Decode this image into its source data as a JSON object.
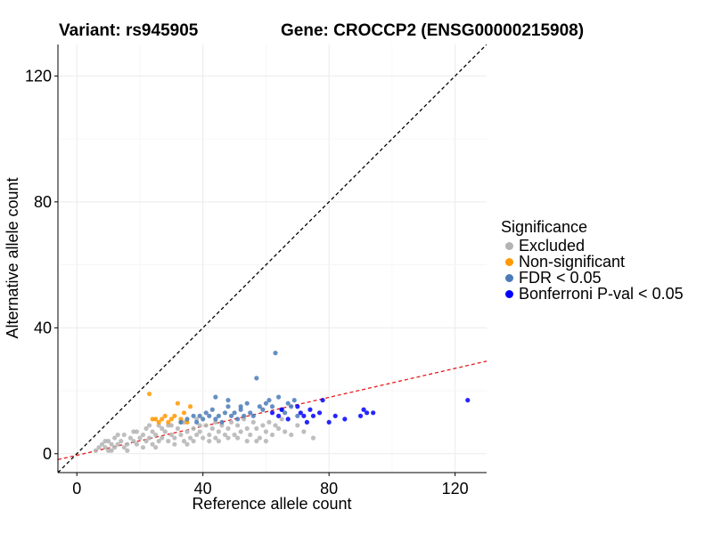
{
  "header": {
    "variant_label": "Variant: rs945905",
    "gene_label": "Gene: CROCCP2 (ENSG00000215908)"
  },
  "chart_data": {
    "type": "scatter",
    "xlabel": "Reference allele count",
    "ylabel": "Alternative allele count",
    "xlim": [
      -6,
      130
    ],
    "ylim": [
      -6,
      130
    ],
    "xticks": [
      0,
      40,
      80,
      120
    ],
    "yticks": [
      0,
      40,
      80,
      120
    ],
    "tick_labels": {
      "x": [
        "0",
        "40",
        "80",
        "120"
      ],
      "y": [
        "0",
        "40",
        "80",
        "120"
      ]
    },
    "grid": true,
    "reference_lines": [
      {
        "name": "identity",
        "slope": 1,
        "intercept": 0,
        "color": "#000000",
        "style": "dashed"
      },
      {
        "name": "fit",
        "slope": 0.23,
        "intercept": -0.5,
        "color": "#e41a1c",
        "style": "dashed"
      }
    ],
    "legend": {
      "title": "Significance",
      "position": "right",
      "entries": [
        {
          "label": "Excluded",
          "color": "#b3b3b3"
        },
        {
          "label": "Non-significant",
          "color": "#ff9900"
        },
        {
          "label": "FDR < 0.05",
          "color": "#4a7bb7"
        },
        {
          "label": "Bonferroni P-val < 0.05",
          "color": "#0000ff"
        }
      ]
    },
    "series": [
      {
        "name": "Excluded",
        "color": "#b3b3b3",
        "points": [
          [
            6,
            1
          ],
          [
            7,
            2
          ],
          [
            8,
            3
          ],
          [
            9,
            2
          ],
          [
            10,
            1
          ],
          [
            10,
            4
          ],
          [
            11,
            3
          ],
          [
            12,
            2
          ],
          [
            12,
            5
          ],
          [
            13,
            3
          ],
          [
            14,
            4
          ],
          [
            15,
            2
          ],
          [
            15,
            6
          ],
          [
            16,
            3
          ],
          [
            17,
            5
          ],
          [
            18,
            4
          ],
          [
            18,
            7
          ],
          [
            19,
            3
          ],
          [
            20,
            5
          ],
          [
            21,
            6
          ],
          [
            22,
            4
          ],
          [
            22,
            8
          ],
          [
            23,
            5
          ],
          [
            24,
            3
          ],
          [
            24,
            7
          ],
          [
            25,
            6
          ],
          [
            26,
            4
          ],
          [
            26,
            9
          ],
          [
            27,
            5
          ],
          [
            28,
            7
          ],
          [
            29,
            4
          ],
          [
            30,
            6
          ],
          [
            30,
            9
          ],
          [
            31,
            5
          ],
          [
            32,
            8
          ],
          [
            33,
            6
          ],
          [
            34,
            4
          ],
          [
            34,
            10
          ],
          [
            35,
            7
          ],
          [
            36,
            5
          ],
          [
            37,
            8
          ],
          [
            38,
            6
          ],
          [
            38,
            11
          ],
          [
            39,
            7
          ],
          [
            40,
            5
          ],
          [
            41,
            9
          ],
          [
            42,
            6
          ],
          [
            43,
            8
          ],
          [
            44,
            5
          ],
          [
            44,
            10
          ],
          [
            45,
            7
          ],
          [
            46,
            9
          ],
          [
            47,
            6
          ],
          [
            48,
            8
          ],
          [
            49,
            10
          ],
          [
            50,
            6
          ],
          [
            51,
            9
          ],
          [
            52,
            7
          ],
          [
            53,
            11
          ],
          [
            54,
            8
          ],
          [
            55,
            6
          ],
          [
            56,
            10
          ],
          [
            57,
            8
          ],
          [
            58,
            5
          ],
          [
            59,
            9
          ],
          [
            60,
            7
          ],
          [
            61,
            10
          ],
          [
            62,
            6
          ],
          [
            63,
            9
          ],
          [
            64,
            8
          ],
          [
            65,
            11
          ],
          [
            66,
            7
          ],
          [
            68,
            6
          ],
          [
            70,
            9
          ],
          [
            72,
            7
          ],
          [
            75,
            5
          ],
          [
            9,
            4
          ],
          [
            11,
            1
          ],
          [
            13,
            6
          ],
          [
            16,
            1
          ],
          [
            19,
            7
          ],
          [
            21,
            2
          ],
          [
            23,
            9
          ],
          [
            25,
            2
          ],
          [
            27,
            8
          ],
          [
            29,
            9
          ],
          [
            31,
            3
          ],
          [
            33,
            10
          ],
          [
            35,
            3
          ],
          [
            37,
            4
          ],
          [
            39,
            9
          ],
          [
            42,
            4
          ],
          [
            45,
            4
          ],
          [
            48,
            5
          ],
          [
            51,
            5
          ],
          [
            54,
            4
          ],
          [
            57,
            4
          ],
          [
            60,
            4
          ]
        ]
      },
      {
        "name": "Non-significant",
        "color": "#ff9900",
        "points": [
          [
            23,
            19
          ],
          [
            24,
            11
          ],
          [
            25,
            11
          ],
          [
            26,
            10
          ],
          [
            27,
            11
          ],
          [
            28,
            12
          ],
          [
            29,
            10
          ],
          [
            30,
            11
          ],
          [
            31,
            12
          ],
          [
            32,
            16
          ],
          [
            33,
            11
          ],
          [
            34,
            13
          ],
          [
            35,
            10
          ],
          [
            36,
            15
          ]
        ]
      },
      {
        "name": "FDR < 0.05",
        "color": "#4a7bb7",
        "points": [
          [
            33,
            10
          ],
          [
            35,
            11
          ],
          [
            37,
            12
          ],
          [
            38,
            10
          ],
          [
            39,
            12
          ],
          [
            40,
            11
          ],
          [
            41,
            13
          ],
          [
            42,
            12
          ],
          [
            43,
            14
          ],
          [
            44,
            11
          ],
          [
            45,
            12
          ],
          [
            46,
            10
          ],
          [
            47,
            13
          ],
          [
            48,
            15
          ],
          [
            49,
            12
          ],
          [
            50,
            13
          ],
          [
            51,
            11
          ],
          [
            52,
            14
          ],
          [
            53,
            12
          ],
          [
            54,
            16
          ],
          [
            55,
            13
          ],
          [
            56,
            12
          ],
          [
            57,
            24
          ],
          [
            58,
            15
          ],
          [
            59,
            14
          ],
          [
            60,
            16
          ],
          [
            61,
            17
          ],
          [
            62,
            15
          ],
          [
            63,
            32
          ],
          [
            64,
            18
          ],
          [
            65,
            14
          ],
          [
            66,
            13
          ],
          [
            67,
            16
          ],
          [
            68,
            15
          ],
          [
            69,
            17
          ],
          [
            70,
            12
          ],
          [
            44,
            18
          ],
          [
            48,
            17
          ],
          [
            52,
            15
          ]
        ]
      },
      {
        "name": "Bonferroni P-val < 0.05",
        "color": "#0000ff",
        "points": [
          [
            62,
            13
          ],
          [
            64,
            12
          ],
          [
            65,
            14
          ],
          [
            67,
            11
          ],
          [
            70,
            15
          ],
          [
            71,
            13
          ],
          [
            72,
            12
          ],
          [
            73,
            10
          ],
          [
            74,
            14
          ],
          [
            75,
            12
          ],
          [
            77,
            13
          ],
          [
            78,
            17
          ],
          [
            80,
            10
          ],
          [
            82,
            12
          ],
          [
            85,
            11
          ],
          [
            90,
            12
          ],
          [
            91,
            14
          ],
          [
            92,
            13
          ],
          [
            94,
            13
          ],
          [
            124,
            17
          ]
        ]
      }
    ]
  }
}
